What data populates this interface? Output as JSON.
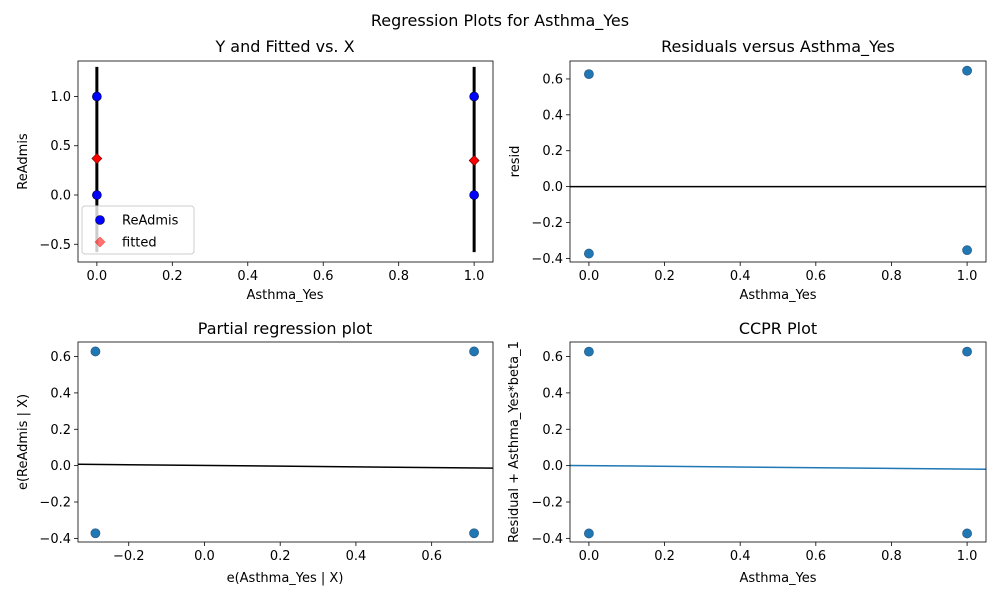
{
  "figure": {
    "suptitle": "Regression Plots for Asthma_Yes"
  },
  "colors": {
    "observed": "#0000ff",
    "fitted": "#ff0000",
    "scatter": "#1f77b4",
    "scatter_edge": "#2f5f8a",
    "line_black": "#000000",
    "ccpr_line": "#1f77b4"
  },
  "chart_data": [
    {
      "id": "fitted_vs_x",
      "type": "scatter",
      "title": "Y and Fitted vs. X",
      "xlabel": "Asthma_Yes",
      "ylabel": "ReAdmis",
      "xlim": [
        -0.05,
        1.05
      ],
      "ylim": [
        -0.68,
        1.36
      ],
      "xticks": [
        0.0,
        0.2,
        0.4,
        0.6,
        0.8,
        1.0
      ],
      "xtick_labels": [
        "0.0",
        "0.2",
        "0.4",
        "0.6",
        "0.8",
        "1.0"
      ],
      "yticks": [
        -0.5,
        0.0,
        0.5,
        1.0
      ],
      "ytick_labels": [
        "−0.5",
        "0.0",
        "0.5",
        "1.0"
      ],
      "legend": {
        "position": "lower-left",
        "entries": [
          "ReAdmis",
          "fitted"
        ]
      },
      "series": [
        {
          "name": "ReAdmis",
          "marker": "circle",
          "points": [
            [
              0,
              1
            ],
            [
              0,
              0
            ],
            [
              1,
              1
            ],
            [
              1,
              0
            ]
          ]
        },
        {
          "name": "fitted",
          "marker": "diamond",
          "points": [
            [
              0,
              0.37
            ],
            [
              1,
              0.35
            ]
          ]
        }
      ],
      "vlines": [
        {
          "x": 0,
          "ymin": -0.58,
          "ymax": 1.3
        },
        {
          "x": 1,
          "ymin": -0.58,
          "ymax": 1.3
        }
      ]
    },
    {
      "id": "resid_vs_x",
      "type": "scatter",
      "title": "Residuals versus Asthma_Yes",
      "xlabel": "Asthma_Yes",
      "ylabel": "resid",
      "xlim": [
        -0.05,
        1.05
      ],
      "ylim": [
        -0.42,
        0.7
      ],
      "xticks": [
        0.0,
        0.2,
        0.4,
        0.6,
        0.8,
        1.0
      ],
      "xtick_labels": [
        "0.0",
        "0.2",
        "0.4",
        "0.6",
        "0.8",
        "1.0"
      ],
      "yticks": [
        -0.4,
        -0.2,
        0.0,
        0.2,
        0.4,
        0.6
      ],
      "ytick_labels": [
        "−0.4",
        "−0.2",
        "0.0",
        "0.2",
        "0.4",
        "0.6"
      ],
      "points": [
        [
          0,
          0.627
        ],
        [
          0,
          -0.373
        ],
        [
          1,
          0.646
        ],
        [
          1,
          -0.354
        ]
      ],
      "hline": 0
    },
    {
      "id": "partial_regression",
      "type": "scatter",
      "title": "Partial regression plot",
      "xlabel": "e(Asthma_Yes | X)",
      "ylabel": "e(ReAdmis | X)",
      "xlim": [
        -0.334,
        0.762
      ],
      "ylim": [
        -0.42,
        0.68
      ],
      "xticks": [
        -0.2,
        0.0,
        0.2,
        0.4,
        0.6
      ],
      "xtick_labels": [
        "−0.2",
        "0.0",
        "0.2",
        "0.4",
        "0.6"
      ],
      "yticks": [
        -0.4,
        -0.2,
        0.0,
        0.2,
        0.4,
        0.6
      ],
      "ytick_labels": [
        "−0.4",
        "−0.2",
        "0.0",
        "0.2",
        "0.4",
        "0.6"
      ],
      "points": [
        [
          -0.288,
          0.628
        ],
        [
          -0.288,
          -0.372
        ],
        [
          0.712,
          0.628
        ],
        [
          0.712,
          -0.372
        ]
      ],
      "fit_line": [
        [
          -0.334,
          0.0073
        ],
        [
          0.762,
          -0.0136
        ]
      ]
    },
    {
      "id": "ccpr",
      "type": "scatter",
      "title": "CCPR Plot",
      "xlabel": "Asthma_Yes",
      "ylabel": "Residual + Asthma_Yes*beta_1",
      "xlim": [
        -0.05,
        1.05
      ],
      "ylim": [
        -0.42,
        0.68
      ],
      "xticks": [
        0.0,
        0.2,
        0.4,
        0.6,
        0.8,
        1.0
      ],
      "xtick_labels": [
        "0.0",
        "0.2",
        "0.4",
        "0.6",
        "0.8",
        "1.0"
      ],
      "yticks": [
        -0.4,
        -0.2,
        0.0,
        0.2,
        0.4,
        0.6
      ],
      "ytick_labels": [
        "−0.4",
        "−0.2",
        "0.0",
        "0.2",
        "0.4",
        "0.6"
      ],
      "points": [
        [
          0,
          0.627
        ],
        [
          0,
          -0.373
        ],
        [
          1,
          0.627
        ],
        [
          1,
          -0.373
        ]
      ],
      "fit_line": [
        [
          -0.05,
          0.001
        ],
        [
          1.05,
          -0.02
        ]
      ]
    }
  ]
}
